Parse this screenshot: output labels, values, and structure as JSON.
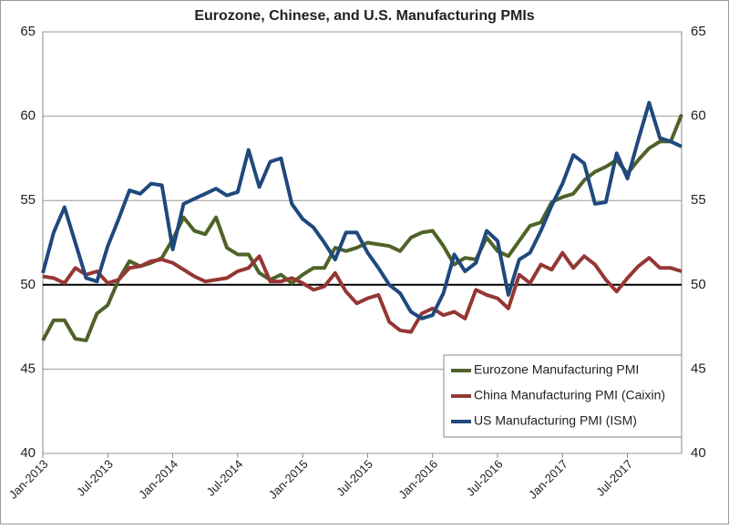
{
  "chart_data": {
    "type": "line",
    "title": "Eurozone, Chinese, and U.S. Manufacturing PMIs",
    "categories": [
      "Jan-2013",
      null,
      null,
      null,
      null,
      null,
      "Jul-2013",
      null,
      null,
      null,
      null,
      null,
      "Jan-2014",
      null,
      null,
      null,
      null,
      null,
      "Jul-2014",
      null,
      null,
      null,
      null,
      null,
      "Jan-2015",
      null,
      null,
      null,
      null,
      null,
      "Jul-2015",
      null,
      null,
      null,
      null,
      null,
      "Jan-2016",
      null,
      null,
      null,
      null,
      null,
      "Jul-2016",
      null,
      null,
      null,
      null,
      null,
      "Jan-2017",
      null,
      null,
      null,
      null,
      null,
      "Jul-2017",
      null,
      null,
      null,
      null,
      null
    ],
    "series": [
      {
        "name": "Eurozone Manufacturing PMI",
        "color": "#4f6228",
        "values": [
          46.7,
          47.9,
          47.9,
          46.8,
          46.7,
          48.3,
          48.8,
          50.3,
          51.4,
          51.1,
          51.3,
          51.6,
          52.7,
          54.0,
          53.2,
          53.0,
          54.0,
          52.2,
          51.8,
          51.8,
          50.7,
          50.3,
          50.6,
          50.1,
          50.6,
          51.0,
          51.0,
          52.2,
          52.0,
          52.2,
          52.5,
          52.4,
          52.3,
          52.0,
          52.8,
          53.1,
          53.2,
          52.3,
          51.2,
          51.6,
          51.5,
          52.8,
          52.0,
          51.7,
          52.6,
          53.5,
          53.7,
          54.9,
          55.2,
          55.4,
          56.2,
          56.7,
          57.0,
          57.4,
          56.6,
          57.4,
          58.1,
          58.5,
          58.5,
          60.1
        ]
      },
      {
        "name": "China Manufacturing PMI (Caixin)",
        "color": "#953735",
        "values": [
          50.5,
          50.4,
          50.1,
          51.0,
          50.6,
          50.8,
          50.1,
          50.3,
          51.0,
          51.1,
          51.4,
          51.5,
          51.3,
          50.9,
          50.5,
          50.2,
          50.3,
          50.4,
          50.8,
          51.0,
          51.7,
          50.2,
          50.2,
          50.4,
          50.1,
          49.7,
          49.9,
          50.7,
          49.6,
          48.9,
          49.2,
          49.4,
          47.8,
          47.3,
          47.2,
          48.3,
          48.6,
          48.2,
          48.4,
          48.0,
          49.7,
          49.4,
          49.2,
          48.6,
          50.6,
          50.1,
          51.2,
          50.9,
          51.9,
          51.0,
          51.7,
          51.2,
          50.3,
          49.6,
          50.4,
          51.1,
          51.6,
          51.0,
          51.0,
          50.8
        ]
      },
      {
        "name": "US Manufacturing PMI (ISM)",
        "color": "#1f497d",
        "values": [
          50.7,
          53.1,
          54.6,
          52.5,
          50.4,
          50.2,
          52.3,
          53.9,
          55.6,
          55.4,
          56.0,
          55.9,
          52.1,
          54.8,
          55.1,
          55.4,
          55.7,
          55.3,
          55.5,
          58.0,
          55.8,
          57.3,
          57.5,
          54.8,
          53.9,
          53.4,
          52.5,
          51.5,
          53.1,
          53.1,
          51.9,
          51.0,
          50.0,
          49.5,
          48.4,
          48.0,
          48.2,
          49.5,
          51.8,
          50.8,
          51.3,
          53.2,
          52.6,
          49.4,
          51.5,
          51.9,
          53.2,
          54.7,
          56.0,
          57.7,
          57.2,
          54.8,
          54.9,
          57.8,
          56.3,
          58.6,
          60.8,
          58.7,
          58.5,
          58.2
        ]
      }
    ],
    "ylim": [
      40,
      65
    ],
    "yticks": [
      40,
      45,
      50,
      55,
      60,
      65
    ],
    "y2lim": [
      40,
      65
    ],
    "y2ticks": [
      40,
      45,
      50,
      55,
      60,
      65
    ],
    "reference_line": 50,
    "grid": true,
    "legend": "lower right"
  }
}
